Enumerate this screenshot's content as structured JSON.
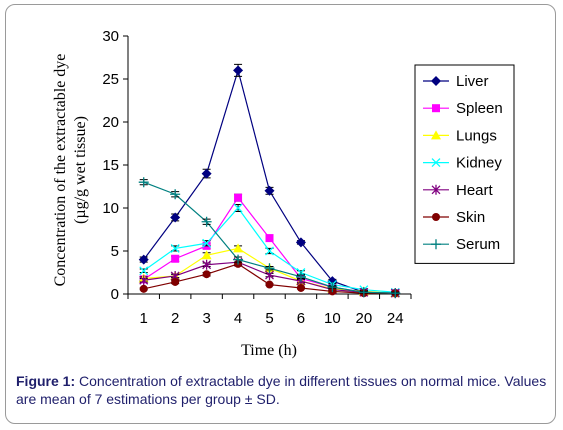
{
  "chart_data": {
    "type": "line",
    "categories": [
      "1",
      "2",
      "3",
      "4",
      "5",
      "6",
      "10",
      "20",
      "24"
    ],
    "ylabel_line1": "Concentration of the extractable dye",
    "ylabel_line2": "(µg/g wet tissue)",
    "xlabel": "Time (h)",
    "ylim": [
      0,
      30
    ],
    "yticks": [
      "0",
      "5",
      "10",
      "15",
      "20",
      "25",
      "30"
    ],
    "legend_position": "right",
    "error_bars": true,
    "series": [
      {
        "name": "Liver",
        "color": "#000080",
        "marker": "diamond",
        "values": [
          4.0,
          8.9,
          14.0,
          26.0,
          12.0,
          6.0,
          1.5,
          0.2,
          0.1
        ],
        "errors": [
          0.3,
          0.4,
          0.5,
          0.7,
          0.4,
          0.2,
          0.2,
          0.1,
          0.1
        ]
      },
      {
        "name": "Spleen",
        "color": "#ff00ff",
        "marker": "square",
        "values": [
          1.7,
          4.1,
          5.6,
          11.2,
          6.5,
          1.8,
          0.8,
          0.2,
          0.1
        ],
        "errors": [
          0.2,
          0.3,
          0.3,
          0.4,
          0.3,
          0.2,
          0.1,
          0.1,
          0.1
        ]
      },
      {
        "name": "Lungs",
        "color": "#ffff00",
        "marker": "triangle",
        "values": [
          1.8,
          2.1,
          4.5,
          5.3,
          3.0,
          1.5,
          0.6,
          0.3,
          0.1
        ],
        "errors": [
          0.2,
          0.2,
          0.3,
          0.3,
          0.2,
          0.2,
          0.1,
          0.1,
          0.1
        ]
      },
      {
        "name": "Kidney",
        "color": "#00ffff",
        "marker": "x",
        "values": [
          2.7,
          5.3,
          5.9,
          10.0,
          5.0,
          2.5,
          1.1,
          0.5,
          0.2
        ],
        "errors": [
          0.2,
          0.3,
          0.3,
          0.4,
          0.3,
          0.2,
          0.1,
          0.1,
          0.1
        ]
      },
      {
        "name": "Heart",
        "color": "#800080",
        "marker": "star",
        "values": [
          1.6,
          2.1,
          3.4,
          3.7,
          2.2,
          1.5,
          0.5,
          0.2,
          0.1
        ],
        "errors": [
          0.2,
          0.2,
          0.2,
          0.3,
          0.2,
          0.2,
          0.1,
          0.1,
          0.1
        ]
      },
      {
        "name": "Skin",
        "color": "#800000",
        "marker": "circle",
        "values": [
          0.6,
          1.4,
          2.3,
          3.5,
          1.1,
          0.7,
          0.3,
          0.1,
          0.1
        ],
        "errors": [
          0.1,
          0.2,
          0.2,
          0.2,
          0.1,
          0.1,
          0.1,
          0.1,
          0.1
        ]
      },
      {
        "name": "Serum",
        "color": "#008080",
        "marker": "plus",
        "values": [
          13.0,
          11.6,
          8.4,
          4.0,
          3.0,
          2.0,
          0.8,
          0.2,
          0.1
        ],
        "errors": [
          0.3,
          0.3,
          0.3,
          0.3,
          0.2,
          0.2,
          0.1,
          0.1,
          0.1
        ]
      }
    ]
  },
  "caption": {
    "label": "Figure 1:",
    "text": " Concentration of extractable dye in different tissues on normal mice. Values are mean of 7 estimations per group ± SD."
  }
}
